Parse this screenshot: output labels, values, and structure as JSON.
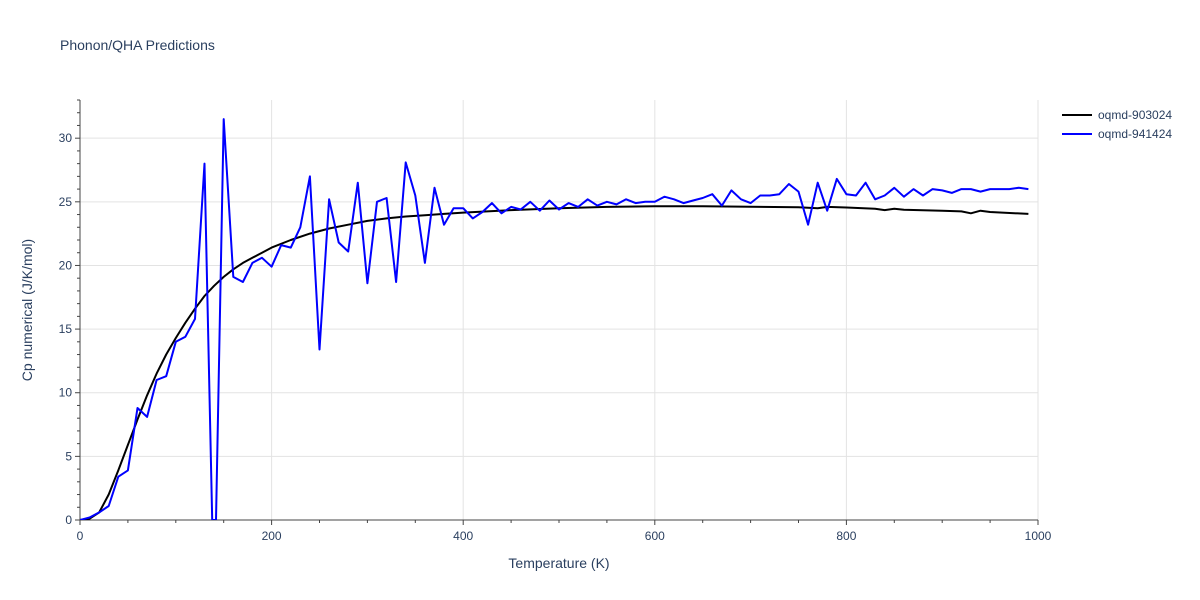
{
  "chart_data": {
    "type": "line",
    "title": "Phonon/QHA Predictions",
    "xlabel": "Temperature (K)",
    "ylabel": "Cp numerical (J/K/mol)",
    "xlim": [
      0,
      1000
    ],
    "ylim": [
      0,
      33
    ],
    "xticks": [
      0,
      200,
      400,
      600,
      800,
      1000
    ],
    "yticks": [
      0,
      5,
      10,
      15,
      20,
      25,
      30
    ],
    "grid": true,
    "legend_position": "top-right",
    "series": [
      {
        "name": "oqmd-903024",
        "color": "#000000",
        "x": [
          0,
          10,
          20,
          30,
          40,
          50,
          60,
          70,
          80,
          90,
          100,
          110,
          120,
          130,
          140,
          150,
          160,
          170,
          180,
          190,
          200,
          220,
          240,
          260,
          280,
          300,
          320,
          340,
          360,
          380,
          400,
          450,
          500,
          550,
          600,
          650,
          700,
          750,
          770,
          780,
          800,
          830,
          840,
          850,
          860,
          900,
          920,
          930,
          940,
          950,
          990
        ],
        "y": [
          0,
          0.1,
          0.6,
          2.0,
          3.9,
          5.9,
          7.9,
          9.8,
          11.5,
          13.0,
          14.3,
          15.5,
          16.6,
          17.6,
          18.4,
          19.1,
          19.7,
          20.2,
          20.6,
          21.0,
          21.4,
          22.0,
          22.5,
          22.9,
          23.2,
          23.5,
          23.7,
          23.85,
          23.95,
          24.05,
          24.15,
          24.35,
          24.5,
          24.6,
          24.65,
          24.65,
          24.62,
          24.58,
          24.5,
          24.6,
          24.55,
          24.45,
          24.35,
          24.45,
          24.38,
          24.3,
          24.25,
          24.1,
          24.3,
          24.2,
          24.05
        ]
      },
      {
        "name": "oqmd-941424",
        "color": "#0000ff",
        "x": [
          0,
          10,
          20,
          30,
          40,
          50,
          60,
          70,
          80,
          90,
          100,
          110,
          120,
          130,
          138,
          142,
          150,
          160,
          170,
          180,
          190,
          200,
          210,
          220,
          230,
          240,
          250,
          260,
          270,
          280,
          290,
          300,
          310,
          320,
          330,
          340,
          350,
          360,
          370,
          380,
          390,
          400,
          410,
          420,
          430,
          440,
          450,
          460,
          470,
          480,
          490,
          500,
          510,
          520,
          530,
          540,
          550,
          560,
          570,
          580,
          590,
          600,
          610,
          620,
          630,
          640,
          650,
          660,
          670,
          680,
          690,
          700,
          710,
          720,
          730,
          740,
          750,
          760,
          770,
          780,
          790,
          800,
          810,
          820,
          830,
          840,
          850,
          860,
          870,
          880,
          890,
          900,
          910,
          920,
          930,
          940,
          950,
          960,
          970,
          980,
          990
        ],
        "y": [
          0,
          0.2,
          0.6,
          1.1,
          3.4,
          3.9,
          8.8,
          8.1,
          11.0,
          11.3,
          14.0,
          14.4,
          15.8,
          28.0,
          0,
          0,
          31.5,
          19.1,
          18.7,
          20.2,
          20.6,
          19.9,
          21.6,
          21.4,
          23.0,
          27.0,
          13.4,
          25.2,
          21.8,
          21.1,
          26.5,
          18.6,
          25.0,
          25.3,
          18.7,
          28.1,
          25.5,
          20.2,
          26.1,
          23.2,
          24.5,
          24.5,
          23.7,
          24.2,
          24.9,
          24.1,
          24.6,
          24.4,
          25.0,
          24.3,
          25.1,
          24.4,
          24.9,
          24.6,
          25.2,
          24.7,
          25.0,
          24.8,
          25.2,
          24.9,
          25.0,
          25.0,
          25.4,
          25.2,
          24.9,
          25.1,
          25.3,
          25.6,
          24.7,
          25.9,
          25.2,
          24.9,
          25.5,
          25.5,
          25.6,
          26.4,
          25.8,
          23.2,
          26.5,
          24.3,
          26.8,
          25.6,
          25.5,
          26.5,
          25.2,
          25.5,
          26.1,
          25.4,
          26.0,
          25.5,
          26.0,
          25.9,
          25.7,
          26.0,
          26.0,
          25.8,
          26.0,
          26.0,
          26.0,
          26.1,
          26.0
        ]
      }
    ]
  }
}
